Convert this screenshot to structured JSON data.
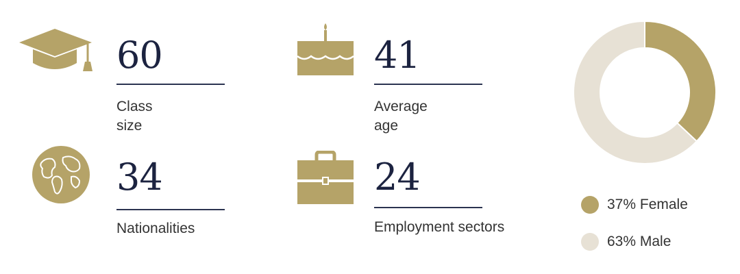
{
  "colors": {
    "gold": "#b5a368",
    "cream": "#e7e1d5",
    "navy": "#1c2340"
  },
  "stats": [
    {
      "id": "class-size",
      "icon": "graduation-cap-icon",
      "value": "60",
      "label": "Class size"
    },
    {
      "id": "average-age",
      "icon": "birthday-cake-icon",
      "value": "41",
      "label": "Average age"
    },
    {
      "id": "nationalities",
      "icon": "globe-icon",
      "value": "34",
      "label": "Nationalities"
    },
    {
      "id": "employment-sectors",
      "icon": "briefcase-icon",
      "value": "24",
      "label": "Employment sectors"
    }
  ],
  "chart_data": {
    "type": "pie",
    "donut": true,
    "categories": [
      "Female",
      "Male"
    ],
    "values": [
      37,
      63
    ],
    "legend": [
      "37% Female",
      "63% Male"
    ],
    "legend_position": "bottom",
    "colors": [
      "#b5a368",
      "#e7e1d5"
    ]
  }
}
